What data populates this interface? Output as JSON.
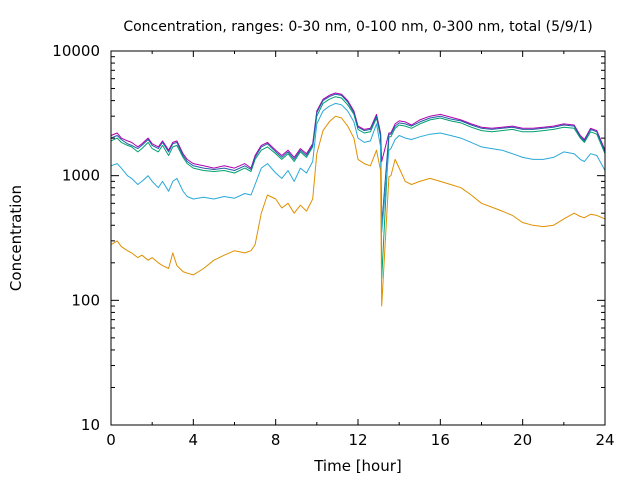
{
  "chart_data": {
    "type": "line",
    "title": "Concentration, ranges: 0-30 nm, 0-100 nm, 0-300 nm, total (5/9/1)",
    "xlabel": "Time [hour]",
    "ylabel": "Concentration",
    "xlim": [
      0,
      24
    ],
    "ylim": [
      10,
      10000
    ],
    "yscale": "log",
    "grid": false,
    "xticks": [
      0,
      4,
      8,
      12,
      16,
      20,
      24
    ],
    "xtick_labels": [
      "0",
      "4",
      "8",
      "12",
      "16",
      "20",
      "24"
    ],
    "yticks": [
      10,
      100,
      1000,
      10000
    ],
    "ytick_labels": [
      "10",
      "100",
      "1000",
      "10000"
    ],
    "series": [
      {
        "color": "#b000b0",
        "x": [
          0.0,
          0.3,
          0.5,
          0.8,
          1.0,
          1.3,
          1.5,
          1.8,
          2.0,
          2.3,
          2.5,
          2.8,
          3.0,
          3.2,
          3.5,
          3.7,
          4.0,
          4.5,
          5.0,
          5.5,
          6.0,
          6.5,
          6.8,
          7.0,
          7.3,
          7.6,
          8.0,
          8.3,
          8.6,
          8.9,
          9.2,
          9.5,
          9.8,
          10.0,
          10.3,
          10.6,
          10.9,
          11.2,
          11.5,
          11.8,
          12.0,
          12.3,
          12.6,
          12.9,
          13.1,
          13.15,
          13.5,
          13.6,
          13.8,
          14.0,
          14.3,
          14.6,
          15.0,
          15.5,
          16.0,
          16.5,
          17.0,
          17.5,
          18.0,
          18.5,
          19.0,
          19.5,
          20.0,
          20.5,
          21.0,
          21.5,
          22.0,
          22.5,
          22.8,
          23.0,
          23.3,
          23.6,
          24.0
        ],
        "y": [
          2100,
          2200,
          2000,
          1900,
          1850,
          1700,
          1800,
          2000,
          1800,
          1700,
          1900,
          1600,
          1850,
          1900,
          1500,
          1350,
          1250,
          1200,
          1150,
          1200,
          1150,
          1250,
          1150,
          1450,
          1750,
          1850,
          1600,
          1450,
          1600,
          1400,
          1650,
          1500,
          1800,
          3300,
          4100,
          4400,
          4600,
          4500,
          4000,
          3300,
          2500,
          2350,
          2400,
          3100,
          2200,
          1300,
          2200,
          2200,
          2600,
          2750,
          2700,
          2550,
          2800,
          3000,
          3100,
          2950,
          2800,
          2600,
          2450,
          2400,
          2450,
          2500,
          2400,
          2400,
          2450,
          2500,
          2600,
          2550,
          2100,
          1950,
          2400,
          2300,
          1600
        ]
      },
      {
        "color": "#00a070",
        "x": [
          0.0,
          0.3,
          0.5,
          0.8,
          1.0,
          1.3,
          1.5,
          1.8,
          2.0,
          2.3,
          2.5,
          2.8,
          3.0,
          3.2,
          3.5,
          3.7,
          4.0,
          4.5,
          5.0,
          5.5,
          6.0,
          6.5,
          6.8,
          7.0,
          7.3,
          7.6,
          8.0,
          8.3,
          8.6,
          8.9,
          9.2,
          9.5,
          9.8,
          10.0,
          10.3,
          10.6,
          10.9,
          11.2,
          11.5,
          11.8,
          12.0,
          12.3,
          12.6,
          12.9,
          13.1,
          13.15,
          13.5,
          13.6,
          13.8,
          14.0,
          14.3,
          14.6,
          15.0,
          15.5,
          16.0,
          16.5,
          17.0,
          17.5,
          18.0,
          18.5,
          19.0,
          19.5,
          20.0,
          20.5,
          21.0,
          21.5,
          22.0,
          22.5,
          22.8,
          23.0,
          23.3,
          23.6,
          24.0
        ],
        "y": [
          1900,
          2000,
          1850,
          1750,
          1700,
          1550,
          1650,
          1850,
          1650,
          1550,
          1750,
          1450,
          1700,
          1750,
          1400,
          1250,
          1150,
          1100,
          1080,
          1100,
          1050,
          1150,
          1080,
          1350,
          1600,
          1700,
          1500,
          1350,
          1500,
          1300,
          1550,
          1400,
          1700,
          3000,
          3800,
          4100,
          4300,
          4200,
          3700,
          3100,
          2350,
          2200,
          2250,
          2900,
          2050,
          150,
          2050,
          2050,
          2400,
          2550,
          2500,
          2400,
          2600,
          2800,
          2900,
          2750,
          2650,
          2450,
          2300,
          2250,
          2300,
          2350,
          2250,
          2250,
          2300,
          2350,
          2450,
          2400,
          2000,
          1850,
          2250,
          2150,
          1500
        ]
      },
      {
        "color": "#1f5fa6",
        "x": [
          0.0,
          0.3,
          0.5,
          0.8,
          1.0,
          1.3,
          1.5,
          1.8,
          2.0,
          2.3,
          2.5,
          2.8,
          3.0,
          3.2,
          3.5,
          3.7,
          4.0,
          4.5,
          5.0,
          5.5,
          6.0,
          6.5,
          6.8,
          7.0,
          7.3,
          7.6,
          8.0,
          8.3,
          8.6,
          8.9,
          9.2,
          9.5,
          9.8,
          10.0,
          10.3,
          10.6,
          10.9,
          11.2,
          11.5,
          11.8,
          12.0,
          12.3,
          12.6,
          12.9,
          13.1,
          13.15,
          13.5,
          13.6,
          13.8,
          14.0,
          14.3,
          14.6,
          15.0,
          15.5,
          16.0,
          16.5,
          17.0,
          17.5,
          18.0,
          18.5,
          19.0,
          19.5,
          20.0,
          20.5,
          21.0,
          21.5,
          22.0,
          22.5,
          22.8,
          23.0,
          23.3,
          23.6,
          24.0
        ],
        "y": [
          2000,
          2100,
          1950,
          1800,
          1750,
          1650,
          1750,
          1950,
          1750,
          1650,
          1850,
          1550,
          1800,
          1850,
          1450,
          1300,
          1200,
          1150,
          1120,
          1150,
          1100,
          1200,
          1120,
          1400,
          1700,
          1800,
          1550,
          1400,
          1550,
          1350,
          1600,
          1450,
          1750,
          3200,
          4000,
          4300,
          4500,
          4400,
          3900,
          3200,
          2450,
          2300,
          2350,
          3000,
          2150,
          400,
          2150,
          2150,
          2500,
          2650,
          2600,
          2500,
          2700,
          2900,
          3000,
          2850,
          2750,
          2550,
          2400,
          2350,
          2400,
          2450,
          2350,
          2350,
          2400,
          2450,
          2550,
          2500,
          2050,
          1900,
          2350,
          2250,
          1550
        ]
      },
      {
        "color": "#2aa8d8",
        "x": [
          0.0,
          0.3,
          0.5,
          0.8,
          1.0,
          1.3,
          1.5,
          1.8,
          2.0,
          2.3,
          2.5,
          2.8,
          3.0,
          3.2,
          3.5,
          3.7,
          4.0,
          4.5,
          5.0,
          5.5,
          6.0,
          6.5,
          6.8,
          7.0,
          7.3,
          7.6,
          8.0,
          8.3,
          8.6,
          8.9,
          9.2,
          9.5,
          9.8,
          10.0,
          10.3,
          10.6,
          10.9,
          11.2,
          11.5,
          11.8,
          12.0,
          12.3,
          12.6,
          12.9,
          13.1,
          13.15,
          13.5,
          13.6,
          13.8,
          14.0,
          14.3,
          14.6,
          15.0,
          15.5,
          16.0,
          16.5,
          17.0,
          17.5,
          18.0,
          18.5,
          19.0,
          19.5,
          20.0,
          20.5,
          21.0,
          21.5,
          22.0,
          22.5,
          22.8,
          23.0,
          23.3,
          23.6,
          24.0
        ],
        "y": [
          1200,
          1250,
          1150,
          1000,
          950,
          850,
          900,
          1000,
          900,
          800,
          900,
          750,
          900,
          950,
          750,
          680,
          650,
          670,
          650,
          680,
          660,
          720,
          700,
          850,
          1150,
          1250,
          1050,
          950,
          1100,
          900,
          1150,
          1050,
          1300,
          2600,
          3300,
          3600,
          3800,
          3700,
          3300,
          2700,
          2000,
          1850,
          1900,
          2600,
          1700,
          350,
          1600,
          1650,
          1950,
          2100,
          2000,
          1950,
          2050,
          2150,
          2200,
          2100,
          2000,
          1850,
          1700,
          1650,
          1600,
          1500,
          1400,
          1350,
          1350,
          1400,
          1550,
          1500,
          1350,
          1300,
          1500,
          1450,
          1100
        ]
      },
      {
        "color": "#e09000",
        "x": [
          0.0,
          0.3,
          0.5,
          0.8,
          1.0,
          1.3,
          1.5,
          1.8,
          2.0,
          2.3,
          2.5,
          2.8,
          3.0,
          3.2,
          3.5,
          3.7,
          4.0,
          4.5,
          5.0,
          5.5,
          6.0,
          6.5,
          6.8,
          7.0,
          7.3,
          7.6,
          8.0,
          8.3,
          8.6,
          8.9,
          9.2,
          9.5,
          9.8,
          10.0,
          10.3,
          10.6,
          10.9,
          11.2,
          11.5,
          11.8,
          12.0,
          12.3,
          12.6,
          12.9,
          13.1,
          13.15,
          13.5,
          13.6,
          13.8,
          14.0,
          14.3,
          14.6,
          15.0,
          15.5,
          16.0,
          16.5,
          17.0,
          17.5,
          18.0,
          18.5,
          19.0,
          19.5,
          20.0,
          20.5,
          21.0,
          21.5,
          22.0,
          22.5,
          22.8,
          23.0,
          23.3,
          23.6,
          24.0
        ],
        "y": [
          280,
          300,
          270,
          250,
          240,
          220,
          230,
          210,
          220,
          200,
          190,
          180,
          240,
          190,
          170,
          165,
          160,
          180,
          210,
          230,
          250,
          240,
          250,
          280,
          500,
          700,
          650,
          550,
          600,
          500,
          580,
          520,
          650,
          1500,
          2300,
          2700,
          3000,
          2900,
          2500,
          2000,
          1350,
          1250,
          1200,
          1600,
          1100,
          90,
          980,
          1000,
          1350,
          1150,
          900,
          850,
          900,
          950,
          900,
          850,
          800,
          700,
          600,
          560,
          520,
          480,
          420,
          400,
          390,
          400,
          450,
          500,
          470,
          460,
          490,
          480,
          450
        ]
      }
    ]
  }
}
